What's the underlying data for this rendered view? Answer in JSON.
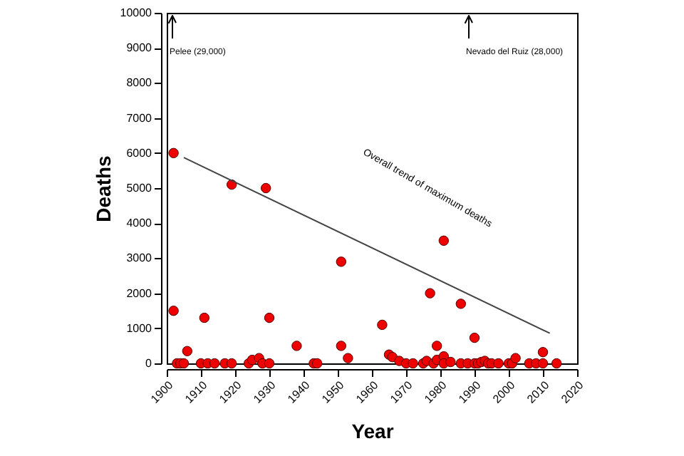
{
  "chart_data": {
    "type": "scatter",
    "xlabel": "Year",
    "ylabel": "Deaths",
    "xlim": [
      1900,
      2020
    ],
    "xticks": [
      1900,
      1910,
      1920,
      1930,
      1940,
      1950,
      1960,
      1970,
      1980,
      1990,
      2000,
      2010,
      2020
    ],
    "ylim": [
      0,
      10000
    ],
    "yticks": [
      0,
      1000,
      2000,
      3000,
      4000,
      5000,
      6000,
      7000,
      8000,
      9000,
      10000
    ],
    "grid": false,
    "marker": "circle",
    "series": [
      {
        "color": "#ee0000",
        "x": [
          1902,
          1902,
          1903,
          1904,
          1905,
          1906,
          1910,
          1911,
          1912,
          1914,
          1917,
          1919,
          1919,
          1924,
          1925,
          1927,
          1928,
          1929,
          1930,
          1930,
          1938,
          1943,
          1944,
          1951,
          1951,
          1953,
          1963,
          1965,
          1966,
          1968,
          1970,
          1972,
          1975,
          1976,
          1977,
          1978,
          1979,
          1979,
          1981,
          1981,
          1981,
          1983,
          1986,
          1986,
          1988,
          1990,
          1990,
          1991,
          1992,
          1993,
          1994,
          1995,
          1997,
          2000,
          2001,
          2002,
          2006,
          2008,
          2010,
          2010,
          2014
        ],
        "values": [
          6000,
          1500,
          0,
          0,
          0,
          350,
          0,
          1300,
          0,
          0,
          0,
          0,
          5100,
          0,
          100,
          150,
          0,
          5000,
          1300,
          0,
          500,
          0,
          0,
          2900,
          500,
          150,
          1100,
          250,
          180,
          70,
          0,
          0,
          0,
          70,
          2000,
          0,
          500,
          100,
          200,
          0,
          3500,
          40,
          1700,
          0,
          0,
          730,
          0,
          0,
          40,
          70,
          0,
          0,
          0,
          0,
          0,
          150,
          0,
          0,
          320,
          0,
          0
        ]
      },
      {
        "type": "line",
        "color": "#444444",
        "marker": "none",
        "line_style": "solid",
        "x": [
          1905,
          2012
        ],
        "values": [
          5870,
          860
        ]
      }
    ],
    "annotations": [
      "Pelee (29,000)",
      "Nevado del Ruiz (28,000)",
      "Overall trend of maximum deaths"
    ]
  }
}
